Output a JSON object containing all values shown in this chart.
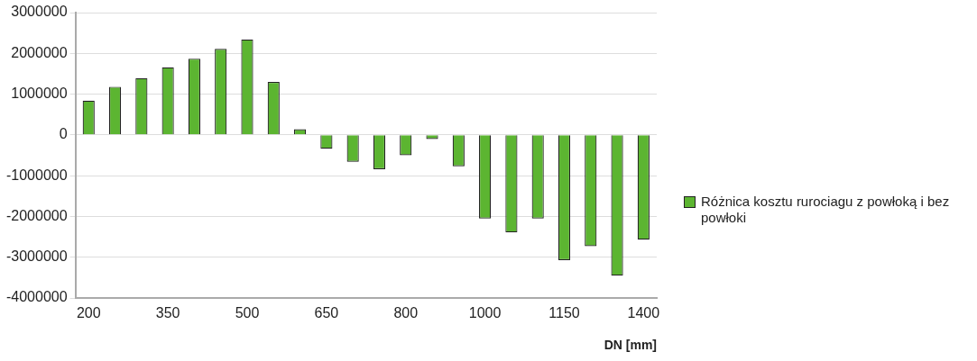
{
  "chart_data": {
    "type": "bar",
    "xlabel": "DN [mm]",
    "categories": [
      "200",
      null,
      null,
      "350",
      null,
      null,
      "500",
      null,
      null,
      "650",
      null,
      null,
      "800",
      null,
      null,
      "1000",
      null,
      null,
      "1150",
      null,
      null,
      "1400"
    ],
    "series": [
      {
        "name": "Różnica kosztu rurociagu z powłoką i bez powłoki",
        "color": "#5cb531",
        "values": [
          840000,
          1180000,
          1390000,
          1660000,
          1870000,
          2110000,
          2340000,
          1300000,
          140000,
          -340000,
          -660000,
          -840000,
          -500000,
          -100000,
          -770000,
          -2050000,
          -2390000,
          -2050000,
          -3070000,
          -2730000,
          -3450000,
          -2570000
        ]
      }
    ],
    "ylim": [
      -4000000,
      3000000
    ],
    "yticks": [
      -4000000,
      -3000000,
      -2000000,
      -1000000,
      0,
      1000000,
      2000000,
      3000000
    ],
    "grid": "y",
    "legend": "right"
  }
}
